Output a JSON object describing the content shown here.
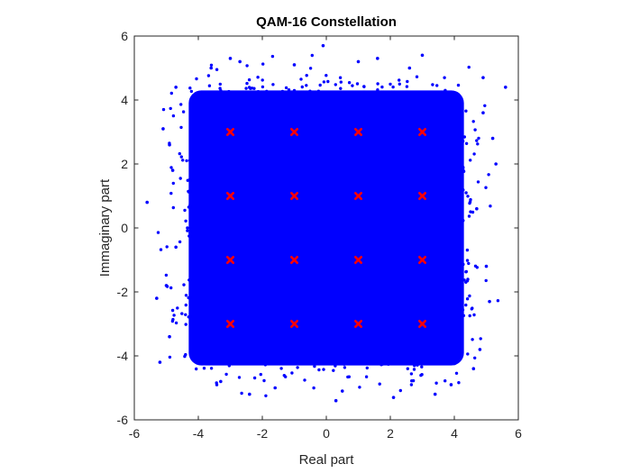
{
  "chart_data": {
    "type": "scatter",
    "title": "QAM-16 Constellation",
    "xlabel": "Real part",
    "ylabel": "Immaginary part",
    "xlim": [
      -6,
      6
    ],
    "ylim": [
      -6,
      6
    ],
    "xticks": [
      -6,
      -4,
      -2,
      0,
      2,
      4,
      6
    ],
    "yticks": [
      -6,
      -4,
      -2,
      0,
      2,
      4,
      6
    ],
    "grid": false,
    "legend": "none",
    "series": [
      {
        "role": "received-samples",
        "marker": "dot",
        "color": "#0000ff",
        "spread": [
          -4.3,
          4.3
        ],
        "x": [
          -5.6,
          -5.3,
          -5.1,
          -4.9,
          -4.8,
          -4.7,
          -4.9,
          -5.0,
          -4.7,
          -5.2,
          5.6,
          5.3,
          5.1,
          4.9,
          4.8,
          4.7,
          5.0,
          5.2,
          4.6,
          4.9,
          -3.0,
          -1.0,
          1.0,
          3.0,
          -2.4,
          0.5,
          2.1,
          -3.6,
          -0.1,
          3.9,
          0.3,
          -2.7,
          1.6,
          3.4,
          -1.6,
          -3.3,
          2.6
        ],
        "y": [
          0.8,
          -2.2,
          3.1,
          -3.4,
          1.8,
          -0.6,
          2.6,
          -1.8,
          4.4,
          -4.2,
          4.4,
          2.0,
          -2.3,
          3.6,
          -3.8,
          0.6,
          -1.2,
          2.8,
          -4.4,
          4.7,
          5.3,
          5.1,
          5.2,
          5.4,
          -5.2,
          -5.1,
          -5.3,
          5.0,
          5.7,
          -4.9,
          -5.4,
          5.2,
          5.3,
          -5.2,
          -5.0,
          -4.8,
          5.0
        ]
      },
      {
        "role": "ideal-constellation",
        "marker": "x",
        "color": "#ff0000",
        "x": [
          -3,
          -1,
          1,
          3,
          -3,
          -1,
          1,
          3,
          -3,
          -1,
          1,
          3,
          -3,
          -1,
          1,
          3
        ],
        "y": [
          3,
          3,
          3,
          3,
          1,
          1,
          1,
          1,
          -1,
          -1,
          -1,
          -1,
          -3,
          -3,
          -3,
          -3
        ]
      }
    ]
  }
}
